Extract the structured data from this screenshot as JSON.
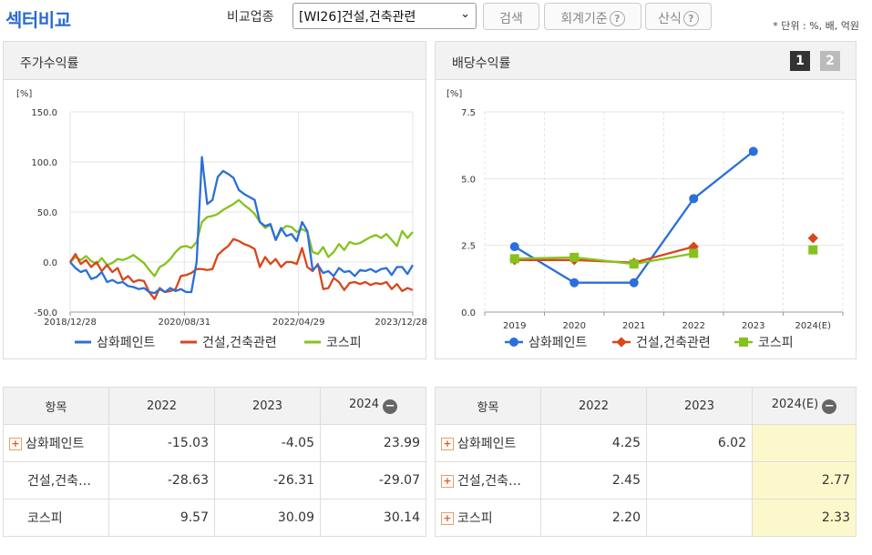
{
  "header": {
    "title": "섹터비교",
    "compare_label": "비교업종",
    "selected_industry": "[WI26]건설,건축관련",
    "search_btn": "검색",
    "accounting_btn": "회계기준",
    "formula_btn": "산식",
    "unit_note": "* 단위 : %, 배, 억원"
  },
  "left_panel": {
    "title": "주가수익률"
  },
  "right_panel": {
    "title": "배당수익률",
    "page1": "1",
    "page2": "2"
  },
  "colors": {
    "samhwa": "#2a6fdb",
    "construction": "#d9461b",
    "kospi": "#86c21e"
  },
  "chart_data": [
    {
      "type": "line",
      "title": "주가수익률",
      "ylabel": "[%]",
      "ylim": [
        -50,
        150
      ],
      "yticks": [
        "150.0",
        "100.0",
        "50.0",
        "0.0",
        "-50.0"
      ],
      "xticks": [
        "2018/12/28",
        "2020/08/31",
        "2022/04/29",
        "2023/12/28"
      ],
      "series": [
        {
          "name": "삼화페인트",
          "values": [
            0,
            -6,
            -10,
            -8,
            -17,
            -15,
            -10,
            -20,
            -18,
            -21,
            -20,
            -24,
            -25,
            -27,
            -26,
            -30,
            -31,
            -27,
            -30,
            -26,
            -29,
            -27,
            -30,
            -30,
            0,
            105,
            58,
            62,
            85,
            91,
            88,
            84,
            72,
            68,
            65,
            62,
            40,
            36,
            38,
            22,
            34,
            26,
            28,
            21,
            40,
            31,
            -8,
            -3,
            -11,
            -9,
            -14,
            -6,
            -10,
            -9,
            -14,
            -8,
            -9,
            -7,
            -10,
            -7,
            -6,
            -13,
            -5,
            -5,
            -12,
            -3
          ]
        },
        {
          "name": "건설,건축관련",
          "values": [
            0,
            8,
            -2,
            2,
            -5,
            0,
            -9,
            -3,
            -10,
            -6,
            -18,
            -14,
            -20,
            -18,
            -19,
            -30,
            -37,
            -26,
            -30,
            -29,
            -27,
            -14,
            -13,
            -11,
            -7,
            -7,
            -8,
            -7,
            7,
            12,
            16,
            23,
            21,
            18,
            16,
            13,
            -5,
            5,
            -2,
            3,
            -5,
            0,
            0,
            -2,
            14,
            -5,
            -9,
            -2,
            -27,
            -26,
            -16,
            -20,
            -28,
            -21,
            -20,
            -22,
            -20,
            -23,
            -21,
            -22,
            -20,
            -27,
            -22,
            -29,
            -26,
            -28
          ]
        },
        {
          "name": "코스피",
          "values": [
            0,
            5,
            2,
            6,
            1,
            -2,
            4,
            -3,
            -1,
            3,
            2,
            4,
            7,
            3,
            -1,
            -8,
            -14,
            -5,
            -2,
            3,
            10,
            15,
            16,
            14,
            20,
            40,
            45,
            46,
            48,
            52,
            55,
            58,
            62,
            57,
            53,
            48,
            40,
            34,
            37,
            22,
            32,
            36,
            35,
            30,
            33,
            30,
            10,
            8,
            15,
            5,
            10,
            18,
            12,
            20,
            18,
            19,
            22,
            25,
            27,
            24,
            28,
            22,
            16,
            31,
            24,
            30
          ]
        }
      ]
    },
    {
      "type": "line",
      "title": "배당수익률",
      "ylabel": "[%]",
      "ylim": [
        0,
        7.5
      ],
      "yticks": [
        "7.5",
        "5.0",
        "2.5",
        "0.0"
      ],
      "categories": [
        "2019",
        "2020",
        "2021",
        "2022",
        "2023",
        "2024(E)"
      ],
      "series": [
        {
          "name": "삼화페인트",
          "values": [
            2.45,
            1.1,
            1.1,
            4.25,
            6.02,
            null
          ]
        },
        {
          "name": "건설,건축관련",
          "values": [
            1.95,
            1.95,
            1.85,
            2.45,
            null,
            2.77
          ]
        },
        {
          "name": "코스피",
          "values": [
            2.0,
            2.05,
            1.8,
            2.2,
            null,
            2.33
          ]
        }
      ]
    }
  ],
  "left_table": {
    "header": [
      "항목",
      "2022",
      "2023",
      "2024"
    ],
    "rows": [
      {
        "name": "삼화페인트",
        "values": [
          "-15.03",
          "-4.05",
          "23.99"
        ]
      },
      {
        "name": "건설,건축…",
        "values": [
          "-28.63",
          "-26.31",
          "-29.07"
        ]
      },
      {
        "name": "코스피",
        "values": [
          "9.57",
          "30.09",
          "30.14"
        ]
      }
    ]
  },
  "right_table": {
    "header": [
      "항목",
      "2022",
      "2023",
      "2024(E)"
    ],
    "rows": [
      {
        "name": "삼화페인트",
        "values": [
          "4.25",
          "6.02",
          ""
        ]
      },
      {
        "name": "건설,건축…",
        "values": [
          "2.45",
          "",
          "2.77"
        ]
      },
      {
        "name": "코스피",
        "values": [
          "2.20",
          "",
          "2.33"
        ]
      }
    ]
  }
}
